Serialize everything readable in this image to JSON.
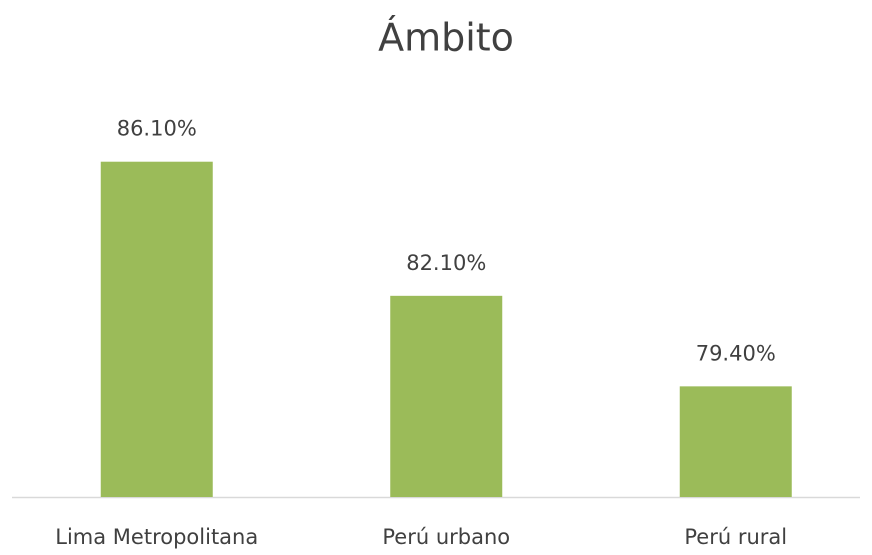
{
  "chart_data": {
    "type": "bar",
    "title": "Ámbito",
    "categories": [
      "Lima Metropolitana",
      "Perú urbano",
      "Perú rural"
    ],
    "values": [
      86.1,
      82.1,
      79.4
    ],
    "value_labels": [
      "86.10%",
      "82.10%",
      "79.40%"
    ],
    "color": "#9bbb59",
    "ylim": [
      76.1,
      88
    ]
  }
}
